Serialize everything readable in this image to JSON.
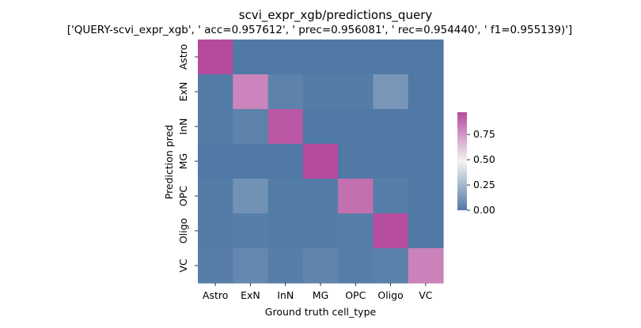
{
  "chart_data": {
    "type": "heatmap",
    "title": "scvi_expr_xgb/predictions_query",
    "subtitle": "['QUERY-scvi_expr_xgb', ' acc=0.957612', '  prec=0.956081', ' rec=0.954440', ' f1=0.955139)']",
    "xlabel": "Ground truth cell_type",
    "ylabel": "Prediction pred",
    "x_categories": [
      "Astro",
      "ExN",
      "InN",
      "MG",
      "OPC",
      "Oligo",
      "VC"
    ],
    "y_categories": [
      "Astro",
      "ExN",
      "InN",
      "MG",
      "OPC",
      "Oligo",
      "VC"
    ],
    "values": [
      [
        0.97,
        0.0,
        0.0,
        0.0,
        0.0,
        0.0,
        0.0
      ],
      [
        0.01,
        0.8,
        0.04,
        0.01,
        0.01,
        0.12,
        0.0
      ],
      [
        0.01,
        0.04,
        0.93,
        0.0,
        0.0,
        0.0,
        0.0
      ],
      [
        0.0,
        0.0,
        0.0,
        0.98,
        0.0,
        0.0,
        0.0
      ],
      [
        0.01,
        0.1,
        0.01,
        0.01,
        0.86,
        0.02,
        0.0
      ],
      [
        0.01,
        0.02,
        0.01,
        0.01,
        0.02,
        0.96,
        0.0
      ],
      [
        0.02,
        0.06,
        0.02,
        0.05,
        0.02,
        0.03,
        0.81
      ]
    ],
    "colorbar": {
      "vmin": 0.0,
      "vmax": 0.97,
      "ticks": [
        "0.00",
        "0.25",
        "0.50",
        "0.75"
      ],
      "colors": {
        "low": "#5079a5",
        "mid": "#f3f3f3",
        "high": "#b54a9e"
      }
    },
    "legend": "right"
  }
}
